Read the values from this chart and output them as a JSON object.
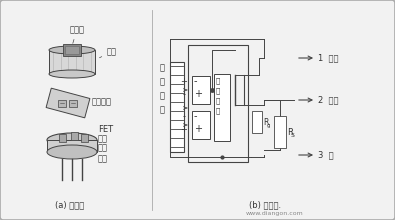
{
  "bg_color": "#d8d8d8",
  "inner_bg": "#f2f2f2",
  "line_color": "#444444",
  "text_color": "#333333",
  "title_a": "(a) 结构图",
  "title_b": "(b) 电路图.",
  "watermark": "www.diangon.com",
  "labels_struct": [
    "滤光片",
    "管帽",
    "敏感元件",
    "FET",
    "管座",
    "高阻",
    "引脚"
  ],
  "labels_out": [
    "1  漏级",
    "2  源级",
    "3  地"
  ],
  "label_ir": [
    "红",
    "外",
    "辐",
    "射"
  ],
  "label_cap": [
    "高",
    "值",
    "电",
    "阻"
  ],
  "label_rg": "R",
  "label_rg_sub": "g",
  "label_rs": "R",
  "label_rs_sub": "S"
}
